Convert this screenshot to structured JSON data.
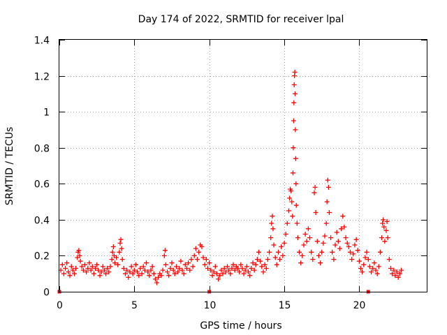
{
  "chart_data": {
    "type": "scatter",
    "title": "Day 174 of 2022, SRMTID for receiver lpal",
    "xlabel": "GPS time / hours",
    "ylabel": "SRMTID / TECUs",
    "xlim": [
      0,
      24.5
    ],
    "ylim": [
      0,
      1.4
    ],
    "xticks": [
      0,
      5,
      10,
      15,
      20
    ],
    "xtick_labels": [
      "0",
      "5",
      "10",
      "15",
      "20"
    ],
    "yticks": [
      0,
      0.2,
      0.4,
      0.6,
      0.8,
      1,
      1.2,
      1.4
    ],
    "ytick_labels": [
      "0",
      "0.2",
      "0.4",
      "0.6",
      "0.8",
      "1",
      "1.2",
      "1.4"
    ],
    "grid": true,
    "marker": "plus",
    "color": "#ff0000",
    "series": [
      {
        "name": "SRMTID",
        "points": [
          [
            0.1,
            0.12
          ],
          [
            0.2,
            0.15
          ],
          [
            0.3,
            0.1
          ],
          [
            0.4,
            0.13
          ],
          [
            0.5,
            0.16
          ],
          [
            0.6,
            0.11
          ],
          [
            0.7,
            0.09
          ],
          [
            0.8,
            0.14
          ],
          [
            0.9,
            0.12
          ],
          [
            1.0,
            0.1
          ],
          [
            1.1,
            0.13
          ],
          [
            1.2,
            0.19
          ],
          [
            1.25,
            0.22
          ],
          [
            1.3,
            0.23
          ],
          [
            1.35,
            0.2
          ],
          [
            1.4,
            0.17
          ],
          [
            1.5,
            0.14
          ],
          [
            1.6,
            0.12
          ],
          [
            1.7,
            0.15
          ],
          [
            1.8,
            0.11
          ],
          [
            1.9,
            0.13
          ],
          [
            2.0,
            0.16
          ],
          [
            2.1,
            0.12
          ],
          [
            2.2,
            0.14
          ],
          [
            2.3,
            0.1
          ],
          [
            2.4,
            0.13
          ],
          [
            2.5,
            0.15
          ],
          [
            2.6,
            0.12
          ],
          [
            2.7,
            0.09
          ],
          [
            2.8,
            0.11
          ],
          [
            2.9,
            0.14
          ],
          [
            3.0,
            0.12
          ],
          [
            3.1,
            0.1
          ],
          [
            3.2,
            0.13
          ],
          [
            3.3,
            0.11
          ],
          [
            3.4,
            0.14
          ],
          [
            3.5,
            0.18
          ],
          [
            3.55,
            0.22
          ],
          [
            3.6,
            0.25
          ],
          [
            3.65,
            0.2
          ],
          [
            3.7,
            0.16
          ],
          [
            3.8,
            0.19
          ],
          [
            3.9,
            0.15
          ],
          [
            4.0,
            0.22
          ],
          [
            4.05,
            0.27
          ],
          [
            4.1,
            0.29
          ],
          [
            4.15,
            0.24
          ],
          [
            4.2,
            0.18
          ],
          [
            4.3,
            0.13
          ],
          [
            4.4,
            0.1
          ],
          [
            4.5,
            0.12
          ],
          [
            4.6,
            0.08
          ],
          [
            4.7,
            0.11
          ],
          [
            4.8,
            0.14
          ],
          [
            4.9,
            0.1
          ],
          [
            5.0,
            0.12
          ],
          [
            5.1,
            0.15
          ],
          [
            5.2,
            0.11
          ],
          [
            5.3,
            0.09
          ],
          [
            5.4,
            0.13
          ],
          [
            5.5,
            0.1
          ],
          [
            5.6,
            0.14
          ],
          [
            5.7,
            0.12
          ],
          [
            5.8,
            0.16
          ],
          [
            5.9,
            0.11
          ],
          [
            6.0,
            0.09
          ],
          [
            6.1,
            0.12
          ],
          [
            6.2,
            0.14
          ],
          [
            6.3,
            0.1
          ],
          [
            6.4,
            0.07
          ],
          [
            6.5,
            0.05
          ],
          [
            6.6,
            0.08
          ],
          [
            6.7,
            0.1
          ],
          [
            6.8,
            0.09
          ],
          [
            6.9,
            0.12
          ],
          [
            7.0,
            0.2
          ],
          [
            7.05,
            0.23
          ],
          [
            7.1,
            0.15
          ],
          [
            7.2,
            0.11
          ],
          [
            7.3,
            0.09
          ],
          [
            7.4,
            0.13
          ],
          [
            7.5,
            0.16
          ],
          [
            7.6,
            0.12
          ],
          [
            7.7,
            0.1
          ],
          [
            7.8,
            0.14
          ],
          [
            7.9,
            0.11
          ],
          [
            8.0,
            0.13
          ],
          [
            8.1,
            0.17
          ],
          [
            8.2,
            0.12
          ],
          [
            8.3,
            0.1
          ],
          [
            8.4,
            0.15
          ],
          [
            8.5,
            0.13
          ],
          [
            8.6,
            0.16
          ],
          [
            8.7,
            0.12
          ],
          [
            8.8,
            0.18
          ],
          [
            8.9,
            0.14
          ],
          [
            9.0,
            0.2
          ],
          [
            9.1,
            0.24
          ],
          [
            9.2,
            0.18
          ],
          [
            9.3,
            0.22
          ],
          [
            9.4,
            0.26
          ],
          [
            9.5,
            0.25
          ],
          [
            9.6,
            0.19
          ],
          [
            9.7,
            0.15
          ],
          [
            9.8,
            0.18
          ],
          [
            9.9,
            0.13
          ],
          [
            10.0,
            0.16
          ],
          [
            10.1,
            0.12
          ],
          [
            10.2,
            0.09
          ],
          [
            10.3,
            0.11
          ],
          [
            10.4,
            0.14
          ],
          [
            10.5,
            0.1
          ],
          [
            10.6,
            0.07
          ],
          [
            10.7,
            0.09
          ],
          [
            10.8,
            0.12
          ],
          [
            10.9,
            0.1
          ],
          [
            11.0,
            0.13
          ],
          [
            11.1,
            0.11
          ],
          [
            11.2,
            0.14
          ],
          [
            11.3,
            0.12
          ],
          [
            11.4,
            0.1
          ],
          [
            11.5,
            0.13
          ],
          [
            11.6,
            0.15
          ],
          [
            11.7,
            0.12
          ],
          [
            11.8,
            0.14
          ],
          [
            11.9,
            0.13
          ],
          [
            12.0,
            0.11
          ],
          [
            12.1,
            0.15
          ],
          [
            12.2,
            0.13
          ],
          [
            12.3,
            0.1
          ],
          [
            12.4,
            0.12
          ],
          [
            12.5,
            0.14
          ],
          [
            12.6,
            0.11
          ],
          [
            12.7,
            0.09
          ],
          [
            12.8,
            0.13
          ],
          [
            12.9,
            0.16
          ],
          [
            13.0,
            0.12
          ],
          [
            13.1,
            0.15
          ],
          [
            13.2,
            0.18
          ],
          [
            13.3,
            0.22
          ],
          [
            13.4,
            0.17
          ],
          [
            13.5,
            0.14
          ],
          [
            13.6,
            0.11
          ],
          [
            13.7,
            0.15
          ],
          [
            13.8,
            0.13
          ],
          [
            13.9,
            0.18
          ],
          [
            14.0,
            0.22
          ],
          [
            14.1,
            0.3
          ],
          [
            14.15,
            0.38
          ],
          [
            14.2,
            0.42
          ],
          [
            14.25,
            0.35
          ],
          [
            14.3,
            0.26
          ],
          [
            14.4,
            0.19
          ],
          [
            14.5,
            0.15
          ],
          [
            14.6,
            0.22
          ],
          [
            14.7,
            0.18
          ],
          [
            14.8,
            0.25
          ],
          [
            14.9,
            0.2
          ],
          [
            15.0,
            0.27
          ],
          [
            15.1,
            0.32
          ],
          [
            15.2,
            0.38
          ],
          [
            15.3,
            0.45
          ],
          [
            15.35,
            0.52
          ],
          [
            15.4,
            0.57
          ],
          [
            15.45,
            0.56
          ],
          [
            15.5,
            0.5
          ],
          [
            15.55,
            0.42
          ],
          [
            15.58,
            0.66
          ],
          [
            15.6,
            0.8
          ],
          [
            15.62,
            0.95
          ],
          [
            15.64,
            1.05
          ],
          [
            15.66,
            1.15
          ],
          [
            15.68,
            1.2
          ],
          [
            15.7,
            1.22
          ],
          [
            15.72,
            1.1
          ],
          [
            15.74,
            0.9
          ],
          [
            15.76,
            0.74
          ],
          [
            15.78,
            0.6
          ],
          [
            15.8,
            0.48
          ],
          [
            15.85,
            0.38
          ],
          [
            15.9,
            0.3
          ],
          [
            16.0,
            0.22
          ],
          [
            16.1,
            0.16
          ],
          [
            16.2,
            0.2
          ],
          [
            16.3,
            0.26
          ],
          [
            16.4,
            0.32
          ],
          [
            16.5,
            0.28
          ],
          [
            16.6,
            0.35
          ],
          [
            16.7,
            0.3
          ],
          [
            16.8,
            0.22
          ],
          [
            16.9,
            0.18
          ],
          [
            17.0,
            0.55
          ],
          [
            17.05,
            0.58
          ],
          [
            17.1,
            0.44
          ],
          [
            17.2,
            0.28
          ],
          [
            17.3,
            0.2
          ],
          [
            17.4,
            0.16
          ],
          [
            17.5,
            0.22
          ],
          [
            17.6,
            0.27
          ],
          [
            17.7,
            0.31
          ],
          [
            17.8,
            0.38
          ],
          [
            17.85,
            0.5
          ],
          [
            17.9,
            0.62
          ],
          [
            17.95,
            0.58
          ],
          [
            18.0,
            0.44
          ],
          [
            18.1,
            0.3
          ],
          [
            18.2,
            0.22
          ],
          [
            18.3,
            0.18
          ],
          [
            18.4,
            0.26
          ],
          [
            18.5,
            0.33
          ],
          [
            18.6,
            0.28
          ],
          [
            18.7,
            0.24
          ],
          [
            18.8,
            0.35
          ],
          [
            18.9,
            0.42
          ],
          [
            19.0,
            0.36
          ],
          [
            19.1,
            0.3
          ],
          [
            19.2,
            0.27
          ],
          [
            19.3,
            0.25
          ],
          [
            19.4,
            0.22
          ],
          [
            19.5,
            0.18
          ],
          [
            19.6,
            0.21
          ],
          [
            19.7,
            0.26
          ],
          [
            19.8,
            0.29
          ],
          [
            19.9,
            0.23
          ],
          [
            20.0,
            0.17
          ],
          [
            20.1,
            0.13
          ],
          [
            20.2,
            0.11
          ],
          [
            20.3,
            0.15
          ],
          [
            20.4,
            0.19
          ],
          [
            20.5,
            0.22
          ],
          [
            20.6,
            0.18
          ],
          [
            20.7,
            0.14
          ],
          [
            20.8,
            0.11
          ],
          [
            20.9,
            0.13
          ],
          [
            21.0,
            0.16
          ],
          [
            21.1,
            0.12
          ],
          [
            21.2,
            0.1
          ],
          [
            21.3,
            0.14
          ],
          [
            21.4,
            0.22
          ],
          [
            21.5,
            0.3
          ],
          [
            21.55,
            0.38
          ],
          [
            21.6,
            0.4
          ],
          [
            21.65,
            0.36
          ],
          [
            21.7,
            0.28
          ],
          [
            21.8,
            0.34
          ],
          [
            21.85,
            0.39
          ],
          [
            21.9,
            0.3
          ],
          [
            22.0,
            0.18
          ],
          [
            22.1,
            0.13
          ],
          [
            22.2,
            0.1
          ],
          [
            22.3,
            0.12
          ],
          [
            22.4,
            0.09
          ],
          [
            22.5,
            0.11
          ],
          [
            22.6,
            0.08
          ],
          [
            22.7,
            0.1
          ],
          [
            22.8,
            0.12
          ]
        ]
      }
    ],
    "axis_markers": [
      0,
      10,
      20.6
    ]
  }
}
